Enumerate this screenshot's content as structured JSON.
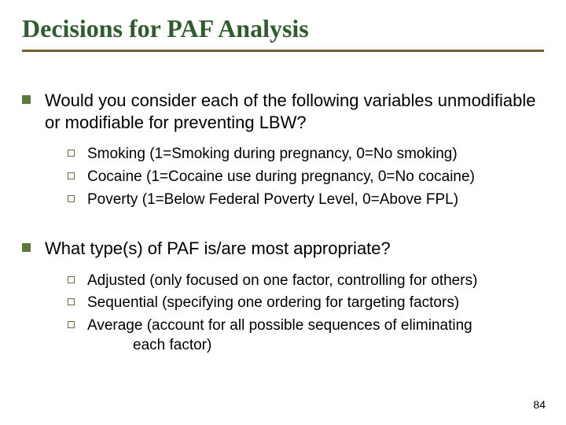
{
  "title": "Decisions for PAF Analysis",
  "colors": {
    "title_text": "#2f5b2f",
    "title_underline": "#7a5c2e",
    "body_text": "#000000",
    "bullet_fill": "#5b7a3a",
    "bullet_border": "#5b7a3a",
    "background": "#ffffff"
  },
  "typography": {
    "title_family": "Times New Roman",
    "title_size_pt": 32,
    "title_weight": "bold",
    "body_family": "Arial",
    "level1_size_pt": 22,
    "level2_size_pt": 19
  },
  "blocks": [
    {
      "text": "Would you consider each of the following variables unmodifiable or modifiable for preventing LBW?",
      "sub": [
        "Smoking (1=Smoking during pregnancy, 0=No smoking)",
        "Cocaine (1=Cocaine use during pregnancy, 0=No cocaine)",
        "Poverty  (1=Below Federal Poverty Level, 0=Above FPL)"
      ]
    },
    {
      "text": "What type(s) of PAF is/are most appropriate?",
      "sub": [
        "Adjusted (only focused on one factor, controlling for others)",
        "Sequential (specifying one ordering for targeting factors)",
        "Average (account for all possible sequences of eliminating\n        each factor)"
      ]
    }
  ],
  "page_number": "84"
}
